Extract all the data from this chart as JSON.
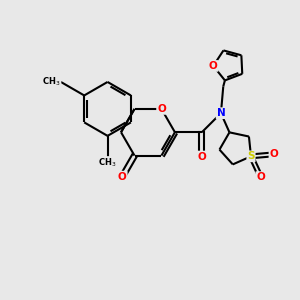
{
  "background_color": "#e8e8e8",
  "bond_color": "#000000",
  "atom_colors": {
    "O": "#ff0000",
    "N": "#0000ff",
    "S": "#cccc00"
  },
  "bond_width": 1.5,
  "bg": "#e8e8e8"
}
